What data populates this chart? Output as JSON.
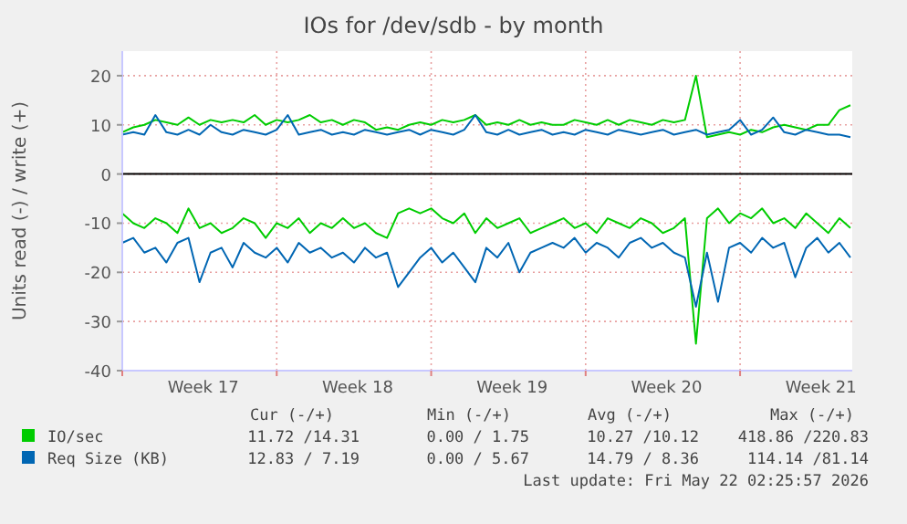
{
  "chart_data": {
    "type": "line",
    "title": "IOs for /dev/sdb - by month",
    "ylabel": "Units read (-) / write (+)",
    "x": [
      "2026-04-19T00:00",
      "2026-04-19T12:00",
      "2026-04-20T00:00",
      "2026-04-20T12:00",
      "2026-04-21T00:00",
      "2026-04-21T12:00",
      "2026-04-22T00:00",
      "2026-04-22T12:00",
      "2026-04-23T00:00",
      "2026-04-23T12:00",
      "2026-04-24T00:00",
      "2026-04-24T12:00",
      "2026-04-25T00:00",
      "2026-04-25T12:00",
      "2026-04-26T00:00",
      "2026-04-26T12:00",
      "2026-04-27T00:00",
      "2026-04-27T12:00",
      "2026-04-28T00:00",
      "2026-04-28T12:00",
      "2026-04-29T00:00",
      "2026-04-29T12:00",
      "2026-04-30T00:00",
      "2026-04-30T12:00",
      "2026-05-01T00:00",
      "2026-05-01T12:00",
      "2026-05-02T00:00",
      "2026-05-02T12:00",
      "2026-05-03T00:00",
      "2026-05-03T12:00",
      "2026-05-04T00:00",
      "2026-05-04T12:00",
      "2026-05-05T00:00",
      "2026-05-05T12:00",
      "2026-05-06T00:00",
      "2026-05-06T12:00",
      "2026-05-07T00:00",
      "2026-05-07T12:00",
      "2026-05-08T00:00",
      "2026-05-08T12:00",
      "2026-05-09T00:00",
      "2026-05-09T12:00",
      "2026-05-10T00:00",
      "2026-05-10T12:00",
      "2026-05-11T00:00",
      "2026-05-11T12:00",
      "2026-05-12T00:00",
      "2026-05-12T12:00",
      "2026-05-13T00:00",
      "2026-05-13T12:00",
      "2026-05-14T00:00",
      "2026-05-14T12:00",
      "2026-05-15T00:00",
      "2026-05-15T12:00",
      "2026-05-16T00:00",
      "2026-05-16T12:00",
      "2026-05-17T00:00",
      "2026-05-17T12:00",
      "2026-05-18T00:00",
      "2026-05-18T12:00",
      "2026-05-19T00:00",
      "2026-05-19T12:00",
      "2026-05-20T00:00",
      "2026-05-20T12:00",
      "2026-05-21T00:00",
      "2026-05-21T12:00",
      "2026-05-22T00:00"
    ],
    "series": [
      {
        "name": "IO/sec",
        "color": "#00cc00",
        "values": [
          8.5,
          9.5,
          10,
          11,
          10.5,
          10,
          11.5,
          10,
          11,
          10.5,
          11,
          10.5,
          12,
          10,
          11,
          10.5,
          11,
          12,
          10.5,
          11,
          10,
          11,
          10.5,
          9,
          9.5,
          9,
          10,
          10.5,
          10,
          11,
          10.5,
          11,
          12,
          10,
          10.5,
          10,
          11,
          10,
          10.5,
          10,
          10,
          11,
          10.5,
          10,
          11,
          10,
          11,
          10.5,
          10,
          11,
          10.5,
          11,
          20,
          7.5,
          8,
          8.5,
          8,
          9,
          8.5,
          9.5,
          10,
          9.5,
          9,
          10,
          10,
          13,
          14
        ]
      },
      {
        "name": "Req Size (KB)",
        "color": "#0066b3",
        "values": [
          8,
          8.5,
          8,
          12,
          8.5,
          8,
          9,
          8,
          10,
          8.5,
          8,
          9,
          8.5,
          8,
          9,
          12,
          8,
          8.5,
          9,
          8,
          8.5,
          8,
          9,
          8.5,
          8,
          8.5,
          9,
          8,
          9,
          8.5,
          8,
          9,
          12,
          8.5,
          8,
          9,
          8,
          8.5,
          9,
          8,
          8.5,
          8,
          9,
          8.5,
          8,
          9,
          8.5,
          8,
          8.5,
          9,
          8,
          8.5,
          9,
          8,
          8.5,
          9,
          11,
          8,
          9,
          11.5,
          8.5,
          8,
          9,
          8.5,
          8,
          8,
          7.5
        ]
      },
      {
        "color": "#00cc00",
        "values": [
          -8,
          -10,
          -11,
          -9,
          -10,
          -12,
          -7,
          -11,
          -10,
          -12,
          -11,
          -9,
          -10,
          -13,
          -10,
          -11,
          -9,
          -12,
          -10,
          -11,
          -9,
          -11,
          -10,
          -12,
          -13,
          -8,
          -7,
          -8,
          -7,
          -9,
          -10,
          -8,
          -12,
          -9,
          -11,
          -10,
          -9,
          -12,
          -11,
          -10,
          -9,
          -11,
          -10,
          -12,
          -9,
          -10,
          -11,
          -9,
          -10,
          -12,
          -11,
          -9,
          -34.5,
          -9,
          -7,
          -10,
          -8,
          -9,
          -7,
          -10,
          -9,
          -11,
          -8,
          -10,
          -12,
          -9,
          -11
        ]
      },
      {
        "color": "#0066b3",
        "values": [
          -14,
          -13,
          -16,
          -15,
          -18,
          -14,
          -13,
          -22,
          -16,
          -15,
          -19,
          -14,
          -16,
          -17,
          -15,
          -18,
          -14,
          -16,
          -15,
          -17,
          -16,
          -18,
          -15,
          -17,
          -16,
          -23,
          -20,
          -17,
          -15,
          -18,
          -16,
          -19,
          -22,
          -15,
          -17,
          -14,
          -20,
          -16,
          -15,
          -14,
          -15,
          -13,
          -16,
          -14,
          -15,
          -17,
          -14,
          -13,
          -15,
          -14,
          -16,
          -17,
          -27,
          -16,
          -26,
          -15,
          -14,
          -16,
          -13,
          -15,
          -14,
          -21,
          -15,
          -13,
          -16,
          -14,
          -17
        ]
      }
    ],
    "xlim": [
      "2026-04-19T00:00",
      "2026-05-22T02:00"
    ],
    "xticks": [
      {
        "value": "2026-04-19T00:00",
        "label": null
      },
      {
        "value": "2026-04-22T16:00",
        "label": "Week 17"
      },
      {
        "value": "2026-04-26T00:00",
        "label": null
      },
      {
        "value": "2026-04-29T16:00",
        "label": "Week 18"
      },
      {
        "value": "2026-05-03T00:00",
        "label": null
      },
      {
        "value": "2026-05-06T16:00",
        "label": "Week 19"
      },
      {
        "value": "2026-05-10T00:00",
        "label": null
      },
      {
        "value": "2026-05-13T16:00",
        "label": "Week 20"
      },
      {
        "value": "2026-05-17T00:00",
        "label": null
      },
      {
        "value": "2026-05-20T16:00",
        "label": "Week 21"
      }
    ],
    "ylim": [
      -40,
      25
    ],
    "yticks": [
      -40,
      -30,
      -20,
      -10,
      0,
      10,
      20
    ],
    "grid": true,
    "legend": "bottom",
    "ref_lines": [
      {
        "axis": "y",
        "value": 0,
        "color": "#000000"
      }
    ],
    "annotations": [
      "Cur (-/+)",
      "Min (-/+)",
      "Avg (-/+)",
      "Max (-/+)",
      "11.72 /14.31",
      "0.00 / 1.75",
      "10.27 /10.12",
      "418.86 /220.83",
      "12.83 / 7.19",
      "0.00 / 5.67",
      "14.79 / 8.36",
      "114.14 /81.14",
      "Last update: Fri May 22 02:25:57 2026"
    ]
  }
}
